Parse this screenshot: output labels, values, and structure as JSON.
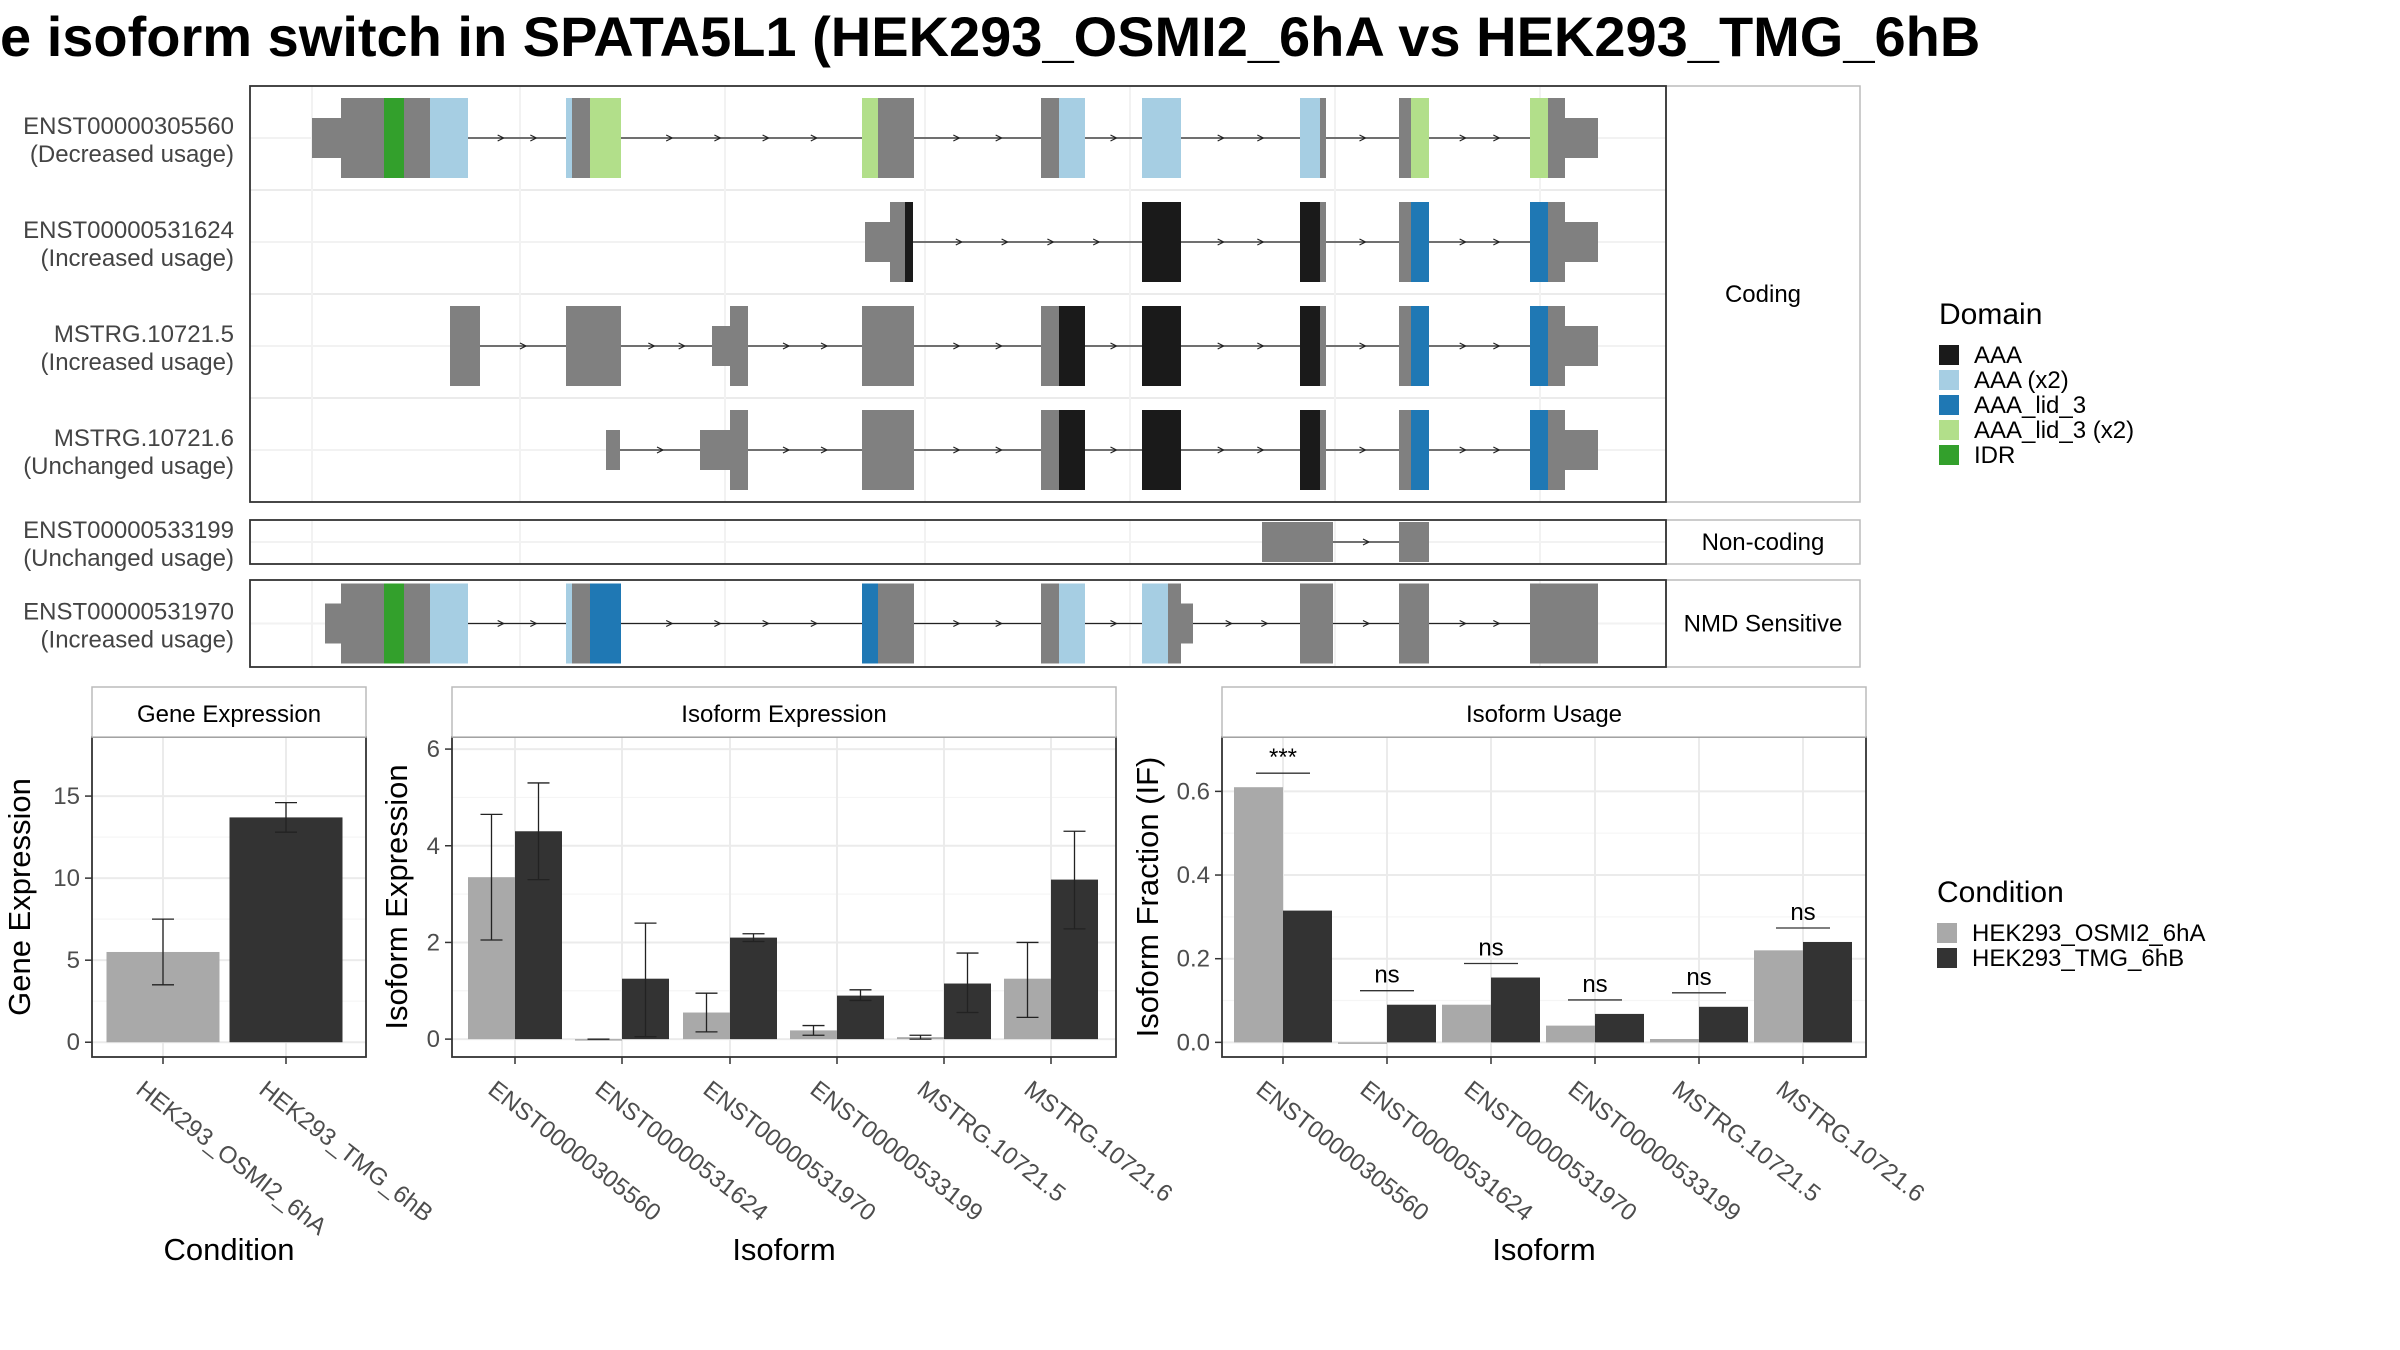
{
  "title": "e isoform switch in SPATA5L1 (HEK293_OSMI2_6hA vs HEK293_TMG_6hB",
  "colors": {
    "exon": "#808080",
    "AAA": "#1a1a1a",
    "AAA_x2": "#a6cee3",
    "AAA_lid_3": "#1f78b4",
    "AAA_lid_3_x2": "#b2df8a",
    "IDR": "#33a02c",
    "cond1": "#a9a9a9",
    "cond2": "#333333"
  },
  "structure": {
    "panels": [
      {
        "label": "Coding",
        "tracks": [
          {
            "name": "ENST00000305560",
            "sub": "(Decreased usage)",
            "segments": [
              [
                312,
                341,
                "utr"
              ],
              [
                341,
                430,
                "c"
              ],
              [
                430,
                468,
                "AAA_x2"
              ],
              [
                566,
                572,
                "AAA_x2"
              ],
              [
                572,
                590,
                "c"
              ],
              [
                590,
                621,
                "AAA_lid_3_x2"
              ],
              [
                862,
                878,
                "AAA_lid_3_x2"
              ],
              [
                878,
                914,
                "c"
              ],
              [
                1041,
                1059,
                "c"
              ],
              [
                1059,
                1085,
                "AAA_x2"
              ],
              [
                1142,
                1181,
                "AAA_x2"
              ],
              [
                1300,
                1320,
                "AAA_x2"
              ],
              [
                1320,
                1326,
                "c"
              ],
              [
                1399,
                1411,
                "c"
              ],
              [
                1411,
                1429,
                "AAA_lid_3_x2"
              ],
              [
                1530,
                1548,
                "AAA_lid_3_x2"
              ],
              [
                1548,
                1565,
                "c"
              ],
              [
                1565,
                1598,
                "utr"
              ]
            ],
            "domains": [
              [
                384,
                404,
                "IDR"
              ]
            ]
          },
          {
            "name": "ENST00000531624",
            "sub": "(Increased usage)",
            "segments": [
              [
                865,
                890,
                "utr"
              ],
              [
                890,
                905,
                "c"
              ],
              [
                905,
                913,
                "AAA"
              ],
              [
                1142,
                1181,
                "AAA"
              ],
              [
                1300,
                1320,
                "AAA"
              ],
              [
                1320,
                1326,
                "c"
              ],
              [
                1399,
                1411,
                "c"
              ],
              [
                1411,
                1429,
                "AAA_lid_3"
              ],
              [
                1530,
                1548,
                "AAA_lid_3"
              ],
              [
                1548,
                1565,
                "c"
              ],
              [
                1565,
                1598,
                "utr"
              ]
            ],
            "domains": []
          },
          {
            "name": "MSTRG.10721.5",
            "sub": "(Increased usage)",
            "segments": [
              [
                450,
                480,
                "c"
              ],
              [
                566,
                621,
                "c"
              ],
              [
                712,
                730,
                "utr"
              ],
              [
                730,
                748,
                "c"
              ],
              [
                862,
                914,
                "c"
              ],
              [
                1041,
                1059,
                "c"
              ],
              [
                1059,
                1085,
                "AAA"
              ],
              [
                1142,
                1181,
                "AAA"
              ],
              [
                1300,
                1320,
                "AAA"
              ],
              [
                1320,
                1326,
                "c"
              ],
              [
                1399,
                1411,
                "c"
              ],
              [
                1411,
                1429,
                "AAA_lid_3"
              ],
              [
                1530,
                1548,
                "AAA_lid_3"
              ],
              [
                1548,
                1565,
                "c"
              ],
              [
                1565,
                1598,
                "utr"
              ]
            ],
            "domains": []
          },
          {
            "name": "MSTRG.10721.6",
            "sub": "(Unchanged usage)",
            "segments": [
              [
                606,
                620,
                "utr"
              ],
              [
                700,
                730,
                "utr"
              ],
              [
                730,
                748,
                "c"
              ],
              [
                862,
                914,
                "c"
              ],
              [
                1041,
                1059,
                "c"
              ],
              [
                1059,
                1085,
                "AAA"
              ],
              [
                1142,
                1181,
                "AAA"
              ],
              [
                1300,
                1320,
                "AAA"
              ],
              [
                1320,
                1326,
                "c"
              ],
              [
                1399,
                1411,
                "c"
              ],
              [
                1411,
                1429,
                "AAA_lid_3"
              ],
              [
                1530,
                1548,
                "AAA_lid_3"
              ],
              [
                1548,
                1565,
                "c"
              ],
              [
                1565,
                1598,
                "utr"
              ]
            ],
            "domains": []
          }
        ]
      },
      {
        "label": "Non-coding",
        "tracks": [
          {
            "name": "ENST00000533199",
            "sub": "(Unchanged usage)",
            "segments": [
              [
                1262,
                1333,
                "nc"
              ],
              [
                1399,
                1429,
                "nc"
              ]
            ],
            "domains": []
          }
        ]
      },
      {
        "label": "NMD Sensitive",
        "tracks": [
          {
            "name": "ENST00000531970",
            "sub": "(Increased usage)",
            "segments": [
              [
                325,
                341,
                "utr"
              ],
              [
                341,
                430,
                "c"
              ],
              [
                430,
                468,
                "AAA_x2"
              ],
              [
                566,
                572,
                "AAA_x2"
              ],
              [
                572,
                590,
                "c"
              ],
              [
                590,
                621,
                "AAA_lid_3"
              ],
              [
                862,
                878,
                "AAA_lid_3"
              ],
              [
                878,
                914,
                "c"
              ],
              [
                1041,
                1059,
                "c"
              ],
              [
                1059,
                1085,
                "AAA_x2"
              ],
              [
                1142,
                1168,
                "AAA_x2"
              ],
              [
                1168,
                1181,
                "c"
              ],
              [
                1181,
                1193,
                "utr"
              ],
              [
                1300,
                1333,
                "nc"
              ],
              [
                1399,
                1429,
                "nc"
              ],
              [
                1530,
                1598,
                "nc"
              ]
            ],
            "domains": [
              [
                384,
                404,
                "IDR"
              ]
            ]
          }
        ]
      }
    ],
    "legend": {
      "title": "Domain",
      "items": [
        {
          "label": "AAA",
          "key": "AAA"
        },
        {
          "label": "AAA (x2)",
          "key": "AAA_x2"
        },
        {
          "label": "AAA_lid_3",
          "key": "AAA_lid_3"
        },
        {
          "label": "AAA_lid_3 (x2)",
          "key": "AAA_lid_3_x2"
        },
        {
          "label": "IDR",
          "key": "IDR"
        }
      ]
    }
  },
  "chart_data": [
    {
      "type": "bar",
      "title": "Gene Expression",
      "xlabel": "Condition",
      "ylabel": "Gene Expression",
      "categories": [
        "HEK293_OSMI2_6hA",
        "HEK293_TMG_6hB"
      ],
      "values": [
        5.5,
        13.7
      ],
      "errors": [
        [
          3.5,
          7.5
        ],
        [
          12.8,
          14.6
        ]
      ],
      "ylim": [
        -0.9,
        18.6
      ],
      "yticks": [
        0,
        5,
        10,
        15
      ]
    },
    {
      "type": "bar",
      "title": "Isoform Expression",
      "xlabel": "Isoform",
      "ylabel": "Isoform Expression",
      "categories": [
        "ENST00000305560",
        "ENST00000531624",
        "ENST00000531970",
        "ENST00000533199",
        "MSTRG.10721.5",
        "MSTRG.10721.6"
      ],
      "series": [
        {
          "name": "HEK293_OSMI2_6hA",
          "values": [
            3.35,
            0.0,
            0.55,
            0.18,
            0.04,
            1.25
          ],
          "errors": [
            [
              2.05,
              4.65
            ],
            [
              0.0,
              0.0
            ],
            [
              0.15,
              0.95
            ],
            [
              0.08,
              0.28
            ],
            [
              0.0,
              0.08
            ],
            [
              0.45,
              2.0
            ]
          ]
        },
        {
          "name": "HEK293_TMG_6hB",
          "values": [
            4.3,
            1.25,
            2.1,
            0.9,
            1.15,
            3.3
          ],
          "errors": [
            [
              3.3,
              5.3
            ],
            [
              0.05,
              2.4
            ],
            [
              2.02,
              2.18
            ],
            [
              0.8,
              1.02
            ],
            [
              0.55,
              1.78
            ],
            [
              2.28,
              4.3
            ]
          ]
        }
      ],
      "ylim": [
        -0.37,
        6.25
      ],
      "yticks": [
        0,
        2,
        4,
        6
      ]
    },
    {
      "type": "bar",
      "title": "Isoform Usage",
      "xlabel": "Isoform",
      "ylabel": "Isoform Fraction (IF)",
      "categories": [
        "ENST00000305560",
        "ENST00000531624",
        "ENST00000531970",
        "ENST00000533199",
        "MSTRG.10721.5",
        "MSTRG.10721.6"
      ],
      "series": [
        {
          "name": "HEK293_OSMI2_6hA",
          "values": [
            0.61,
            0.0,
            0.09,
            0.04,
            0.008,
            0.22
          ]
        },
        {
          "name": "HEK293_TMG_6hB",
          "values": [
            0.315,
            0.09,
            0.155,
            0.068,
            0.085,
            0.24
          ]
        }
      ],
      "significance": [
        "***",
        "ns",
        "ns",
        "ns",
        "ns",
        "ns"
      ],
      "ylim": [
        -0.035,
        0.73
      ],
      "yticks": [
        0.0,
        0.2,
        0.4,
        0.6
      ]
    }
  ],
  "condition_legend": {
    "title": "Condition",
    "items": [
      "HEK293_OSMI2_6hA",
      "HEK293_TMG_6hB"
    ]
  }
}
